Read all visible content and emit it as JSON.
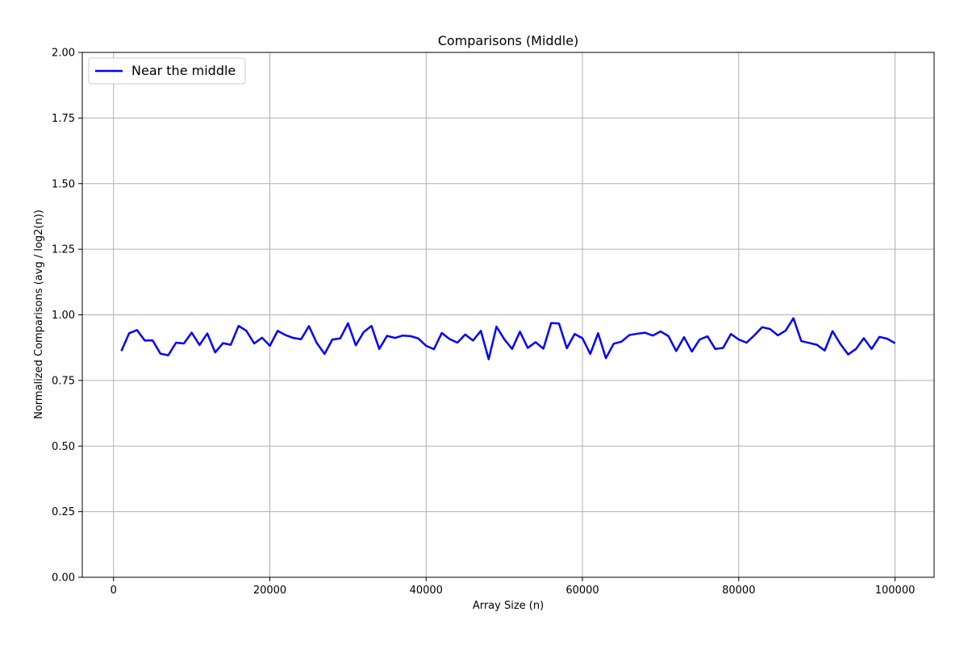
{
  "chart_data": {
    "type": "line",
    "title": "Comparisons (Middle)",
    "xlabel": "Array Size (n)",
    "ylabel": "Normalized Comparisons (avg / log2(n))",
    "xlim": [
      -4000,
      105000
    ],
    "ylim": [
      0,
      2
    ],
    "x_ticks": [
      0,
      20000,
      40000,
      60000,
      80000,
      100000
    ],
    "x_tick_labels": [
      "0",
      "20000",
      "40000",
      "60000",
      "80000",
      "100000"
    ],
    "y_ticks": [
      0,
      0.25,
      0.5,
      0.75,
      1.0,
      1.25,
      1.5,
      1.75,
      2.0
    ],
    "y_tick_labels": [
      "0.00",
      "0.25",
      "0.50",
      "0.75",
      "1.00",
      "1.25",
      "1.50",
      "1.75",
      "2.00"
    ],
    "grid": true,
    "legend_position": "upper-left",
    "series": [
      {
        "name": "Near the middle",
        "color": "#0000ff",
        "x": [
          1000,
          2000,
          3000,
          4000,
          5000,
          6000,
          7000,
          8000,
          9000,
          10000,
          11000,
          12000,
          13000,
          14000,
          15000,
          16000,
          17000,
          18000,
          19000,
          20000,
          21000,
          22000,
          23000,
          24000,
          25000,
          26000,
          27000,
          28000,
          29000,
          30000,
          31000,
          32000,
          33000,
          34000,
          35000,
          36000,
          37000,
          38000,
          39000,
          40000,
          41000,
          42000,
          43000,
          44000,
          45000,
          46000,
          47000,
          48000,
          49000,
          50000,
          51000,
          52000,
          53000,
          54000,
          55000,
          56000,
          57000,
          58000,
          59000,
          60000,
          61000,
          62000,
          63000,
          64000,
          65000,
          66000,
          67000,
          68000,
          69000,
          70000,
          71000,
          72000,
          73000,
          74000,
          75000,
          76000,
          77000,
          78000,
          79000,
          80000,
          81000,
          82000,
          83000,
          84000,
          85000,
          86000,
          87000,
          88000,
          89000,
          90000,
          91000,
          92000,
          93000,
          94000,
          95000,
          96000,
          97000,
          98000,
          99000,
          100000
        ],
        "y": [
          0.862,
          0.93,
          0.942,
          0.902,
          0.903,
          0.852,
          0.846,
          0.894,
          0.891,
          0.932,
          0.885,
          0.929,
          0.857,
          0.892,
          0.886,
          0.958,
          0.939,
          0.891,
          0.913,
          0.882,
          0.939,
          0.923,
          0.912,
          0.907,
          0.957,
          0.893,
          0.851,
          0.906,
          0.91,
          0.968,
          0.884,
          0.934,
          0.958,
          0.87,
          0.92,
          0.912,
          0.921,
          0.919,
          0.91,
          0.882,
          0.869,
          0.931,
          0.908,
          0.894,
          0.925,
          0.902,
          0.939,
          0.831,
          0.955,
          0.907,
          0.87,
          0.936,
          0.874,
          0.896,
          0.871,
          0.969,
          0.967,
          0.873,
          0.927,
          0.911,
          0.851,
          0.93,
          0.835,
          0.89,
          0.898,
          0.923,
          0.928,
          0.932,
          0.921,
          0.937,
          0.919,
          0.862,
          0.915,
          0.86,
          0.906,
          0.918,
          0.87,
          0.874,
          0.927,
          0.906,
          0.894,
          0.922,
          0.953,
          0.946,
          0.922,
          0.94,
          0.987,
          0.9,
          0.893,
          0.886,
          0.864,
          0.938,
          0.889,
          0.849,
          0.87,
          0.911,
          0.87,
          0.916,
          0.909,
          0.892
        ]
      }
    ]
  }
}
